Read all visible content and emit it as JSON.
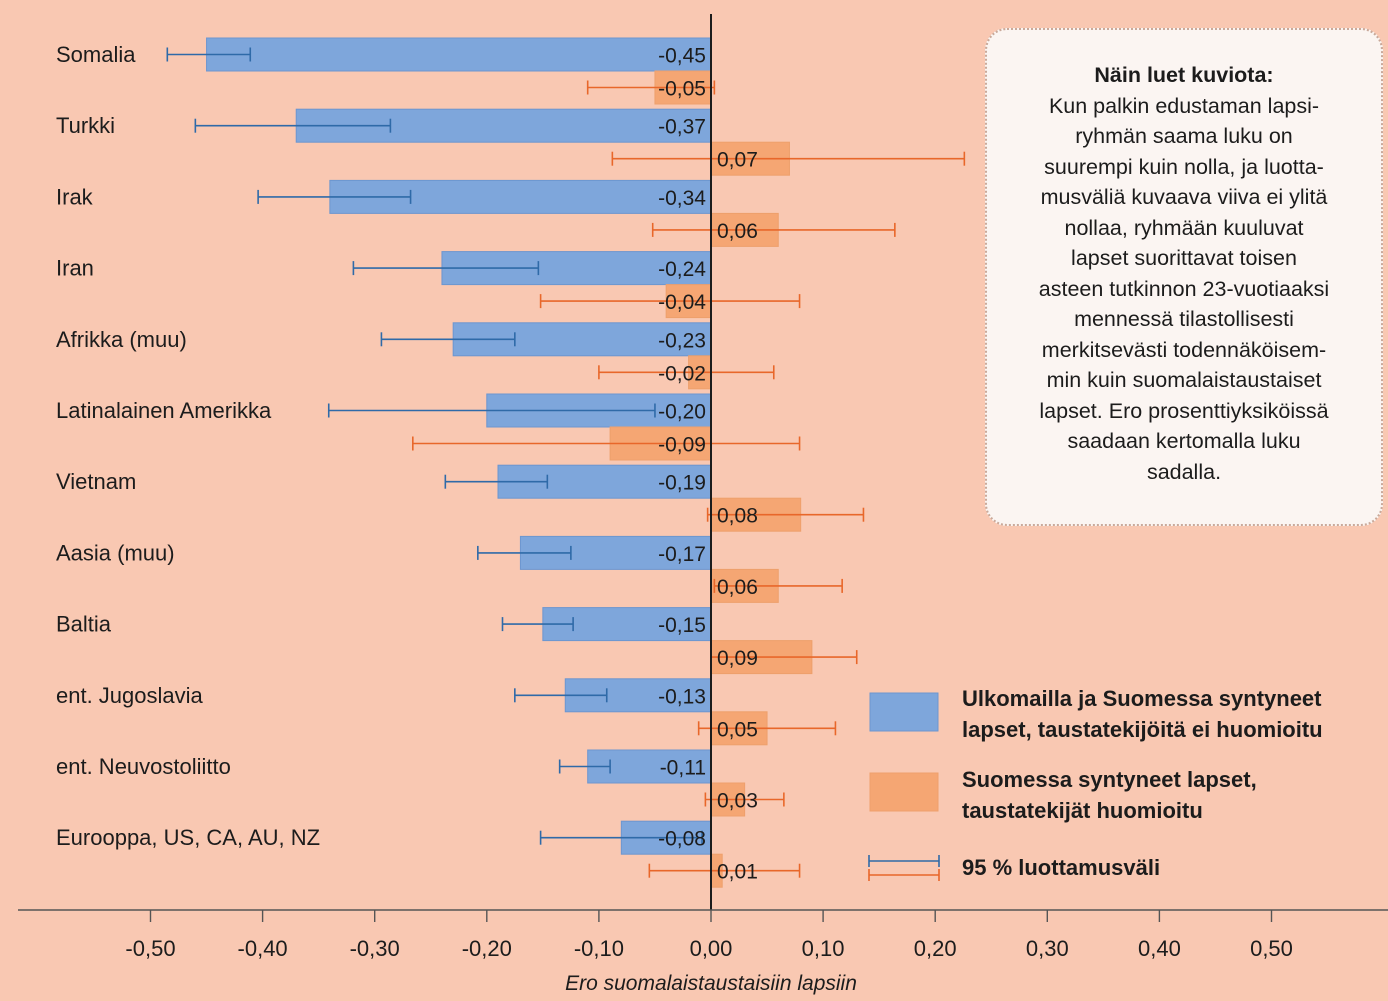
{
  "chart_data": {
    "type": "bar",
    "orientation": "horizontal",
    "categories": [
      "Somalia",
      "Turkki",
      "Irak",
      "Iran",
      "Afrikka (muu)",
      "Latinalainen Amerikka",
      "Vietnam",
      "Aasia (muu)",
      "Baltia",
      "ent. Jugoslavia",
      "ent. Neuvostoliitto",
      "Eurooppa, US, CA, AU, NZ"
    ],
    "series": [
      {
        "name": "Ulkomailla ja Suomessa syntyneet lapset, taustatekijöitä ei huomioitu",
        "color": "#7ea6db",
        "errorColor": "#2f6aa8",
        "values": [
          -0.45,
          -0.37,
          -0.34,
          -0.24,
          -0.23,
          -0.2,
          -0.19,
          -0.17,
          -0.15,
          -0.13,
          -0.11,
          -0.08
        ],
        "labels": [
          "-0,45",
          "-0,37",
          "-0,34",
          "-0,24",
          "-0,23",
          "-0,20",
          "-0,19",
          "-0,17",
          "-0,15",
          "-0,13",
          "-0,11",
          "-0,08"
        ],
        "ci_low": [
          -0.485,
          -0.46,
          -0.404,
          -0.319,
          -0.294,
          -0.341,
          -0.237,
          -0.208,
          -0.186,
          -0.175,
          -0.135,
          -0.152
        ],
        "ci_high": [
          -0.411,
          -0.286,
          -0.268,
          -0.154,
          -0.175,
          -0.05,
          -0.146,
          -0.125,
          -0.123,
          -0.093,
          -0.09,
          -0.008
        ]
      },
      {
        "name": "Suomessa syntyneet lapset, taustatekijät huomioitu",
        "color": "#f5a673",
        "errorColor": "#e8672a",
        "values": [
          -0.05,
          0.07,
          0.06,
          -0.04,
          -0.02,
          -0.09,
          0.08,
          0.06,
          0.09,
          0.05,
          0.03,
          0.01
        ],
        "labels": [
          "-0,05",
          "0,07",
          "0,06",
          "-0,04",
          "-0,02",
          "-0,09",
          "0,08",
          "0,06",
          "0,09",
          "0,05",
          "0,03",
          "0,01"
        ],
        "ci_low": [
          -0.11,
          -0.088,
          -0.052,
          -0.152,
          -0.1,
          -0.266,
          -0.003,
          0.003,
          0.0,
          -0.011,
          -0.005,
          -0.055
        ],
        "ci_high": [
          0.003,
          0.226,
          0.164,
          0.079,
          0.056,
          0.079,
          0.136,
          0.117,
          0.13,
          0.111,
          0.065,
          0.079
        ]
      }
    ],
    "xlim": [
      -0.6,
      0.6
    ],
    "xticks": [
      -0.5,
      -0.4,
      -0.3,
      -0.2,
      -0.1,
      0.0,
      0.1,
      0.2,
      0.3,
      0.4,
      0.5
    ],
    "xtick_labels": [
      "-0,50",
      "-0,40",
      "-0,30",
      "-0,20",
      "-0,10",
      "0,00",
      "0,10",
      "0,20",
      "0,30",
      "0,40",
      "0,50"
    ],
    "xlabel": "Ero suomalaistaustaisiin lapsiin",
    "legend": {
      "placement": "bottom-right",
      "entries": [
        {
          "label": "Ulkomailla ja Suomessa syntyneet lapset, taustatekijöitä ei huomioitu",
          "color": "#7ea6db"
        },
        {
          "label": "Suomessa syntyneet lapset, taustatekijät huomioitu",
          "color": "#f5a673"
        },
        {
          "label": "95 % luottamusväli",
          "color": "#2f6aa8"
        }
      ]
    },
    "grid": false
  },
  "note": {
    "title": "Näin luet kuviota:",
    "body": "Kun palkin edustaman lapsi-ryhmän saama luku on suurempi kuin nolla, ja luotta-musväliä kuvaava viiva ei ylitä nollaa, ryhmään kuuluvat lapset suorittavat toisen asteen tutkinnon 23-vuotiaaksi mennessä tilastollisesti merkitsevästi todennäköisem-min kuin suomalaistaustaiset lapset. Ero prosenttiyksiköissä saadaan kertomalla luku sadalla.",
    "lines": [
      "Kun palkin edustaman lapsi-",
      "ryhmän saama luku on",
      "suurempi kuin nolla, ja luotta-",
      "musväliä kuvaava viiva ei ylitä",
      "nollaa, ryhmään kuuluvat",
      "lapset suorittavat toisen",
      "asteen tutkinnon 23-vuotiaaksi",
      "mennessä tilastollisesti",
      "merkitsevästi todennäköisem-",
      "min kuin suomalaistaustaiset",
      "lapset. Ero prosenttiyksiköissä",
      "saadaan kertomalla luku",
      "sadalla."
    ]
  },
  "legend_text": {
    "blue_line1": "Ulkomailla ja Suomessa syntyneet",
    "blue_line2": "lapset, taustatekijöitä ei huomioitu",
    "orange_line1": "Suomessa syntyneet lapset,",
    "orange_line2": "taustatekijät huomioitu",
    "ci": "95 % luottamusväli"
  }
}
